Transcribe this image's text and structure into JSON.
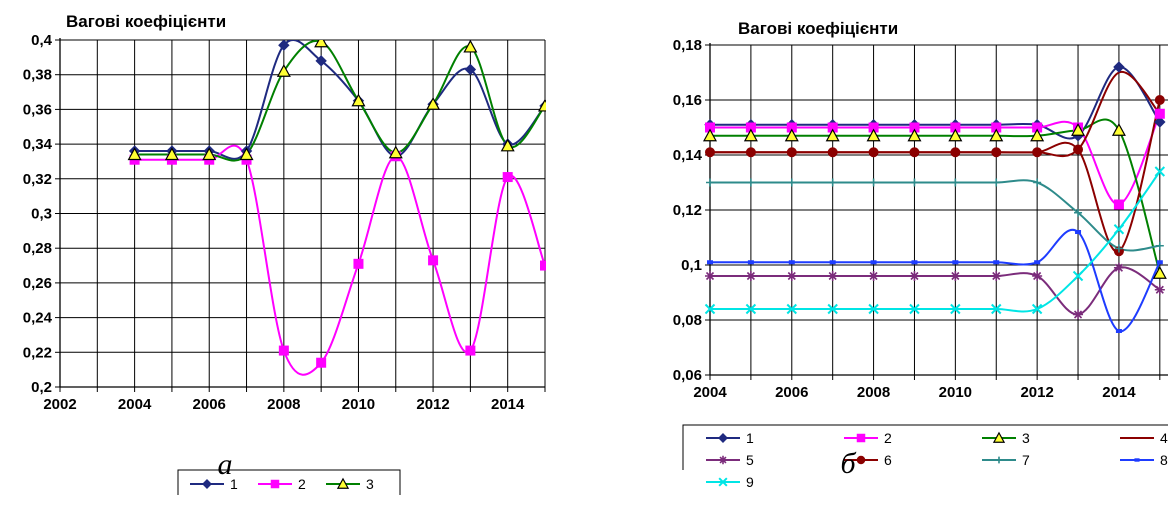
{
  "chart_data": [
    {
      "type": "line",
      "title": "Вагові коефіцієнти",
      "caption": "а",
      "x_ticks": [
        "2002",
        "2004",
        "2006",
        "2008",
        "2010",
        "2012",
        "2014"
      ],
      "y_ticks": [
        "0,4",
        "0,38",
        "0,36",
        "0,34",
        "0,32",
        "0,3",
        "0,28",
        "0,26",
        "0,24",
        "0,22",
        "0,2"
      ],
      "xlim": [
        2002,
        2015
      ],
      "ylim": [
        0.2,
        0.4
      ],
      "grid": true,
      "legend_position": "bottom",
      "series": [
        {
          "name": "1",
          "color": "#1F2A80",
          "marker": "diamond",
          "x": [
            2004,
            2005,
            2006,
            2007,
            2008,
            2009,
            2010,
            2011,
            2012,
            2013,
            2014,
            2015
          ],
          "y": [
            0.336,
            0.336,
            0.336,
            0.336,
            0.397,
            0.388,
            0.365,
            0.333,
            0.363,
            0.383,
            0.34,
            0.362
          ]
        },
        {
          "name": "2",
          "color": "#FF00FF",
          "marker": "square",
          "x": [
            2004,
            2005,
            2006,
            2007,
            2008,
            2009,
            2010,
            2011,
            2012,
            2013,
            2014,
            2015
          ],
          "y": [
            0.331,
            0.331,
            0.331,
            0.331,
            0.221,
            0.214,
            0.271,
            0.333,
            0.273,
            0.221,
            0.321,
            0.27
          ]
        },
        {
          "name": "3",
          "color": "#008000",
          "marker": "triangle",
          "x": [
            2004,
            2005,
            2006,
            2007,
            2008,
            2009,
            2010,
            2011,
            2012,
            2013,
            2014,
            2015
          ],
          "y": [
            0.334,
            0.334,
            0.334,
            0.334,
            0.382,
            0.399,
            0.365,
            0.335,
            0.363,
            0.396,
            0.339,
            0.362
          ]
        }
      ]
    },
    {
      "type": "line",
      "title": "Вагові коефіцієнти",
      "caption": "б",
      "x_ticks": [
        "2004",
        "2006",
        "2008",
        "2010",
        "2012",
        "2014"
      ],
      "y_ticks": [
        "0,18",
        "0,16",
        "0,14",
        "0,12",
        "0,1",
        "0,08",
        "0,06"
      ],
      "xlim": [
        2004,
        2015.2
      ],
      "ylim": [
        0.06,
        0.18
      ],
      "grid": true,
      "legend_position": "bottom",
      "series": [
        {
          "name": "1",
          "color": "#1F2A80",
          "marker": "diamond",
          "x": [
            2004,
            2005,
            2006,
            2007,
            2008,
            2009,
            2010,
            2011,
            2012,
            2013,
            2014,
            2015
          ],
          "y": [
            0.151,
            0.151,
            0.151,
            0.151,
            0.151,
            0.151,
            0.151,
            0.151,
            0.151,
            0.147,
            0.172,
            0.152
          ]
        },
        {
          "name": "2",
          "color": "#FF00FF",
          "marker": "square",
          "x": [
            2004,
            2005,
            2006,
            2007,
            2008,
            2009,
            2010,
            2011,
            2012,
            2013,
            2014,
            2015
          ],
          "y": [
            0.15,
            0.15,
            0.15,
            0.15,
            0.15,
            0.15,
            0.15,
            0.15,
            0.15,
            0.15,
            0.122,
            0.155
          ]
        },
        {
          "name": "3",
          "color": "#008000",
          "marker": "triangle",
          "x": [
            2004,
            2005,
            2006,
            2007,
            2008,
            2009,
            2010,
            2011,
            2012,
            2013,
            2014,
            2015
          ],
          "y": [
            0.147,
            0.147,
            0.147,
            0.147,
            0.147,
            0.147,
            0.147,
            0.147,
            0.147,
            0.149,
            0.149,
            0.097
          ]
        },
        {
          "name": "4",
          "color": "#8B0000",
          "marker": "none",
          "x": [
            2004,
            2005,
            2006,
            2007,
            2008,
            2009,
            2010,
            2011,
            2012,
            2013,
            2014,
            2015
          ],
          "y": [
            0.141,
            0.141,
            0.141,
            0.141,
            0.141,
            0.141,
            0.141,
            0.141,
            0.141,
            0.142,
            0.17,
            0.155
          ]
        },
        {
          "name": "5",
          "color": "#7B2C7B",
          "marker": "star",
          "x": [
            2004,
            2005,
            2006,
            2007,
            2008,
            2009,
            2010,
            2011,
            2012,
            2013,
            2014,
            2015
          ],
          "y": [
            0.096,
            0.096,
            0.096,
            0.096,
            0.096,
            0.096,
            0.096,
            0.096,
            0.096,
            0.082,
            0.099,
            0.091
          ]
        },
        {
          "name": "6",
          "color": "#8B0000",
          "marker": "circle",
          "x": [
            2004,
            2005,
            2006,
            2007,
            2008,
            2009,
            2010,
            2011,
            2012,
            2013,
            2014,
            2015
          ],
          "y": [
            0.141,
            0.141,
            0.141,
            0.141,
            0.141,
            0.141,
            0.141,
            0.141,
            0.141,
            0.142,
            0.105,
            0.16
          ]
        },
        {
          "name": "7",
          "color": "#2E8B8B",
          "marker": "plus",
          "x": [
            2004,
            2005,
            2006,
            2007,
            2008,
            2009,
            2010,
            2011,
            2012,
            2013,
            2014,
            2015
          ],
          "y": [
            0.13,
            0.13,
            0.13,
            0.13,
            0.13,
            0.13,
            0.13,
            0.13,
            0.13,
            0.119,
            0.106,
            0.107
          ]
        },
        {
          "name": "8",
          "color": "#1E3CFF",
          "marker": "dash",
          "x": [
            2004,
            2005,
            2006,
            2007,
            2008,
            2009,
            2010,
            2011,
            2012,
            2013,
            2014,
            2015
          ],
          "y": [
            0.101,
            0.101,
            0.101,
            0.101,
            0.101,
            0.101,
            0.101,
            0.101,
            0.101,
            0.112,
            0.076,
            0.101
          ]
        },
        {
          "name": "9",
          "color": "#00E5E5",
          "marker": "x",
          "x": [
            2004,
            2005,
            2006,
            2007,
            2008,
            2009,
            2010,
            2011,
            2012,
            2013,
            2014,
            2015
          ],
          "y": [
            0.084,
            0.084,
            0.084,
            0.084,
            0.084,
            0.084,
            0.084,
            0.084,
            0.084,
            0.096,
            0.113,
            0.134
          ]
        }
      ]
    }
  ]
}
